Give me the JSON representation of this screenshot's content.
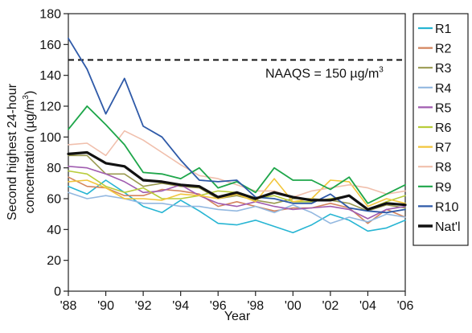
{
  "chart_data": {
    "type": "line",
    "x": [
      1988,
      1989,
      1990,
      1991,
      1992,
      1993,
      1994,
      1995,
      1996,
      1997,
      1998,
      1999,
      2000,
      2001,
      2002,
      2003,
      2004,
      2005,
      2006
    ],
    "x_tick_labels": [
      "'88",
      "'90",
      "'92",
      "'94",
      "'96",
      "'98",
      "'00",
      "'02",
      "'04",
      "'06"
    ],
    "x_tick_values": [
      1988,
      1990,
      1992,
      1994,
      1996,
      1998,
      2000,
      2002,
      2004,
      2006
    ],
    "xlim": [
      1988,
      2006
    ],
    "ylim": [
      0,
      180
    ],
    "y_ticks": [
      0,
      20,
      40,
      60,
      80,
      100,
      120,
      140,
      160,
      180
    ],
    "xlabel": "Year",
    "ylabel_line1": "Second highest 24-hour",
    "ylabel_line2": "concentration (µg/m",
    "ylabel_sup": "3",
    "ylabel_close": ")",
    "grid": false,
    "legend_position": "right",
    "reference_line": {
      "value": 150,
      "label": "NAAQS = 150 µg/m",
      "label_sup": "3",
      "color": "#111111"
    },
    "series": [
      {
        "name": "R1",
        "color": "#27b5d3",
        "width": 1.6,
        "values": [
          68,
          63,
          72,
          64,
          55,
          51,
          59,
          52,
          44,
          43,
          46,
          42,
          38,
          43,
          50,
          46,
          39,
          41,
          46
        ]
      },
      {
        "name": "R2",
        "color": "#d4845c",
        "width": 1.6,
        "values": [
          74,
          68,
          67,
          62,
          62,
          66,
          65,
          63,
          55,
          58,
          55,
          52,
          54,
          54,
          57,
          54,
          44,
          53,
          48
        ]
      },
      {
        "name": "R3",
        "color": "#9a9a50",
        "width": 1.6,
        "values": [
          88,
          88,
          76,
          76,
          68,
          70,
          68,
          67,
          60,
          62,
          59,
          57,
          60,
          60,
          59,
          57,
          52,
          56,
          54
        ]
      },
      {
        "name": "R4",
        "color": "#93b8e0",
        "width": 1.6,
        "values": [
          64,
          60,
          62,
          60,
          57,
          57,
          55,
          55,
          53,
          52,
          55,
          51,
          56,
          51,
          44,
          48,
          45,
          50,
          48
        ]
      },
      {
        "name": "R5",
        "color": "#a05cb0",
        "width": 1.6,
        "values": [
          81,
          80,
          76,
          71,
          64,
          65,
          69,
          62,
          57,
          55,
          58,
          55,
          53,
          54,
          55,
          53,
          47,
          53,
          55
        ]
      },
      {
        "name": "R6",
        "color": "#b8cc3a",
        "width": 1.6,
        "values": [
          78,
          76,
          68,
          64,
          67,
          60,
          60,
          62,
          65,
          64,
          60,
          62,
          58,
          58,
          60,
          62,
          53,
          58,
          62
        ]
      },
      {
        "name": "R7",
        "color": "#f2c63c",
        "width": 1.6,
        "values": [
          71,
          72,
          67,
          60,
          60,
          59,
          63,
          62,
          60,
          63,
          58,
          73,
          58,
          60,
          72,
          71,
          55,
          60,
          57
        ]
      },
      {
        "name": "R8",
        "color": "#f0bfac",
        "width": 1.6,
        "values": [
          95,
          96,
          88,
          104,
          98,
          90,
          82,
          75,
          73,
          69,
          65,
          65,
          61,
          65,
          67,
          69,
          67,
          63,
          65
        ]
      },
      {
        "name": "R9",
        "color": "#1ea64a",
        "width": 1.8,
        "values": [
          105,
          120,
          108,
          95,
          77,
          76,
          73,
          80,
          67,
          71,
          64,
          80,
          72,
          72,
          66,
          74,
          57,
          63,
          69
        ]
      },
      {
        "name": "R10",
        "color": "#2f5aa8",
        "width": 1.8,
        "values": [
          164,
          144,
          115,
          138,
          107,
          100,
          85,
          72,
          71,
          72,
          61,
          60,
          57,
          57,
          63,
          54,
          52,
          51,
          53
        ]
      },
      {
        "name": "Nat'l",
        "color": "#111111",
        "width": 3.2,
        "values": [
          89,
          90,
          83,
          81,
          72,
          71,
          69,
          68,
          61,
          64,
          60,
          64,
          61,
          59,
          59,
          62,
          53,
          57,
          56
        ]
      }
    ]
  }
}
